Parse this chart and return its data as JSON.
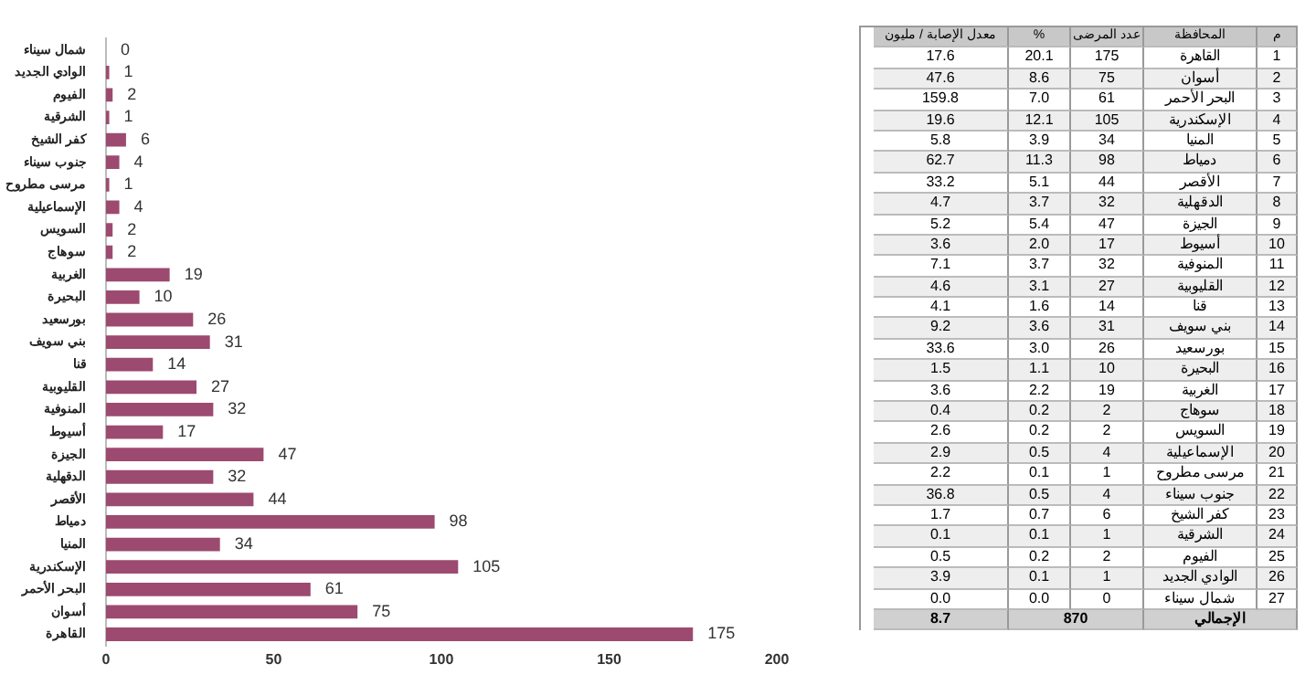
{
  "chart_data": [
    {
      "type": "bar",
      "orientation": "horizontal",
      "color": "#9c4a70",
      "data_labels": true,
      "grid": false,
      "legend": false,
      "categories": [
        "شمال سيناء",
        "الوادي الجديد",
        "الفيوم",
        "الشرقية",
        "كفر الشيخ",
        "جنوب سيناء",
        "مرسى مطروح",
        "الإسماعيلية",
        "السويس",
        "سوهاج",
        "الغربية",
        "البحيرة",
        "بورسعيد",
        "بني سويف",
        "قنا",
        "القليوبية",
        "المنوفية",
        "أسيوط",
        "الجيزة",
        "الدقهلية",
        "الأقصر",
        "دمياط",
        "المنيا",
        "الإسكندرية",
        "البحر الأحمر",
        "أسوان",
        "القاهرة"
      ],
      "values": [
        0,
        1,
        2,
        1,
        6,
        4,
        1,
        4,
        2,
        2,
        19,
        10,
        26,
        31,
        14,
        27,
        32,
        17,
        47,
        32,
        44,
        98,
        34,
        105,
        61,
        75,
        175
      ],
      "xlim": [
        0,
        200
      ],
      "xticks": [
        0,
        50,
        100,
        150,
        200
      ]
    },
    {
      "type": "other",
      "annotations": [
        "م",
        "المحافظة",
        "عدد المرضى",
        "%",
        "معدل الإصابة / مليون",
        "1",
        "القاهرة",
        "175",
        "20.1",
        "17.6",
        "2",
        "أسوان",
        "75",
        "8.6",
        "47.6",
        "3",
        "البحر الأحمر",
        "61",
        "7.0",
        "159.8",
        "4",
        "الإسكندرية",
        "105",
        "12.1",
        "19.6",
        "5",
        "المنيا",
        "34",
        "3.9",
        "5.8",
        "6",
        "دمياط",
        "98",
        "11.3",
        "62.7",
        "7",
        "الأقصر",
        "44",
        "5.1",
        "33.2",
        "8",
        "الدقهلية",
        "32",
        "3.7",
        "4.7",
        "9",
        "الجيزة",
        "47",
        "5.4",
        "5.2",
        "10",
        "أسيوط",
        "17",
        "2.0",
        "3.6",
        "11",
        "المنوفية",
        "32",
        "3.7",
        "7.1",
        "12",
        "القليوبية",
        "27",
        "3.1",
        "4.6",
        "13",
        "قنا",
        "14",
        "1.6",
        "4.1",
        "14",
        "بني سويف",
        "31",
        "3.6",
        "9.2",
        "15",
        "بورسعيد",
        "26",
        "3.0",
        "33.6",
        "16",
        "البحيرة",
        "10",
        "1.1",
        "1.5",
        "17",
        "الغربية",
        "19",
        "2.2",
        "3.6",
        "18",
        "سوهاج",
        "2",
        "0.2",
        "0.4",
        "19",
        "السويس",
        "2",
        "0.2",
        "2.6",
        "20",
        "الإسماعيلية",
        "4",
        "0.5",
        "2.9",
        "21",
        "مرسى مطروح",
        "1",
        "0.1",
        "2.2",
        "22",
        "جنوب سيناء",
        "4",
        "0.5",
        "36.8",
        "23",
        "كفر الشيخ",
        "6",
        "0.7",
        "1.7",
        "24",
        "الشرقية",
        "1",
        "0.1",
        "0.1",
        "25",
        "الفيوم",
        "2",
        "0.2",
        "0.5",
        "26",
        "الوادي الجديد",
        "1",
        "0.1",
        "3.9",
        "27",
        "شمال سيناء",
        "0",
        "0.0",
        "0.0",
        "الإجمالي",
        "870",
        "8.7"
      ]
    }
  ]
}
